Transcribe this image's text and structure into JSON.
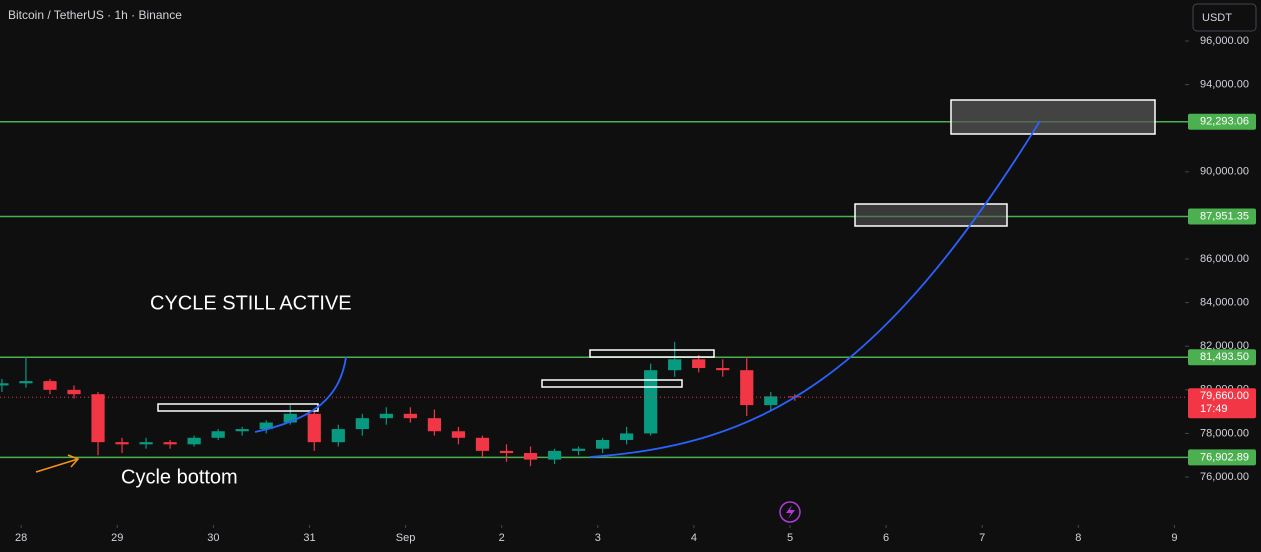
{
  "chart_data": {
    "type": "candlestick",
    "title": "Bitcoin / TetherUS · 1h · Binance",
    "currency": "USDT",
    "annotations": [
      "CYCLE STILL ACTIVE",
      "Cycle bottom"
    ],
    "colors": {
      "up": "#089981",
      "down": "#f23645",
      "level": "#4caf50"
    },
    "x": [
      -0.2,
      0.05,
      0.3,
      0.55,
      0.8,
      1.05,
      1.3,
      1.55,
      1.8,
      2.05,
      2.3,
      2.55,
      2.8,
      3.05,
      3.3,
      3.55,
      3.8,
      4.05,
      4.3,
      4.55,
      4.8,
      5.05,
      5.3,
      5.55,
      5.8,
      6.05,
      6.3,
      6.55,
      6.8,
      7.05,
      7.3,
      7.55,
      7.8,
      8.05
    ],
    "open": [
      80200,
      80300,
      80400,
      80000,
      79800,
      77600,
      77500,
      77600,
      77500,
      77800,
      78100,
      78200,
      78500,
      78900,
      77600,
      78200,
      78700,
      78900,
      78700,
      78100,
      77800,
      77200,
      77100,
      76800,
      77200,
      77300,
      77700,
      78000,
      80900,
      81400,
      81000,
      80900,
      79300,
      79700
    ],
    "high": [
      80500,
      81500,
      80500,
      80200,
      79900,
      77800,
      77800,
      77700,
      77900,
      78200,
      78300,
      78600,
      79300,
      79000,
      78400,
      78900,
      79200,
      79200,
      79100,
      78300,
      77900,
      77500,
      77400,
      77300,
      77400,
      77800,
      78300,
      81200,
      82200,
      81600,
      81400,
      81500,
      79900,
      79800
    ],
    "low": [
      79900,
      80100,
      79800,
      79600,
      77000,
      77100,
      77300,
      77300,
      77400,
      77700,
      77900,
      78000,
      78400,
      77200,
      77400,
      77900,
      78400,
      78500,
      77900,
      77500,
      76900,
      76700,
      76500,
      76600,
      77000,
      77100,
      77500,
      77900,
      80600,
      80800,
      80600,
      78800,
      79000,
      79500
    ],
    "close": [
      80300,
      80400,
      80000,
      79800,
      77600,
      77500,
      77600,
      77500,
      77800,
      78100,
      78200,
      78500,
      78900,
      77600,
      78200,
      78700,
      78900,
      78700,
      78100,
      77800,
      77200,
      77100,
      76800,
      77200,
      77300,
      77700,
      78000,
      80900,
      81400,
      81000,
      80900,
      79300,
      79700,
      79660
    ],
    "xlim": [
      -0.22,
      12.11
    ],
    "ylim": [
      73800,
      97880
    ],
    "xticks": [
      {
        "value": 0,
        "label": "28"
      },
      {
        "value": 1,
        "label": "29"
      },
      {
        "value": 2,
        "label": "30"
      },
      {
        "value": 3,
        "label": "31"
      },
      {
        "value": 4,
        "label": "Sep"
      },
      {
        "value": 5,
        "label": "2"
      },
      {
        "value": 6,
        "label": "3"
      },
      {
        "value": 7,
        "label": "4"
      },
      {
        "value": 8,
        "label": "5"
      },
      {
        "value": 9,
        "label": "6"
      },
      {
        "value": 10,
        "label": "7"
      },
      {
        "value": 11,
        "label": "8"
      },
      {
        "value": 12,
        "label": "9"
      }
    ],
    "yticks": [
      {
        "value": 96000,
        "label": "96,000.00"
      },
      {
        "value": 94000,
        "label": "94,000.00"
      },
      {
        "value": 90000,
        "label": "90,000.00"
      },
      {
        "value": 86000,
        "label": "86,000.00"
      },
      {
        "value": 84000,
        "label": "84,000.00"
      },
      {
        "value": 82000,
        "label": "82,000.00"
      },
      {
        "value": 80000,
        "label": "80,000.00"
      },
      {
        "value": 78000,
        "label": "78,000.00"
      },
      {
        "value": 76000,
        "label": "76,000.00"
      }
    ],
    "levels": [
      {
        "value": 92293.06,
        "label": "92,293.06"
      },
      {
        "value": 87951.35,
        "label": "87,951.35"
      },
      {
        "value": 81493.5,
        "label": "81,493.50"
      },
      {
        "value": 76902.89,
        "label": "76,902.89"
      }
    ],
    "last_price": {
      "value": 79660,
      "label": "79,660.00"
    },
    "countdown": "17:49"
  }
}
